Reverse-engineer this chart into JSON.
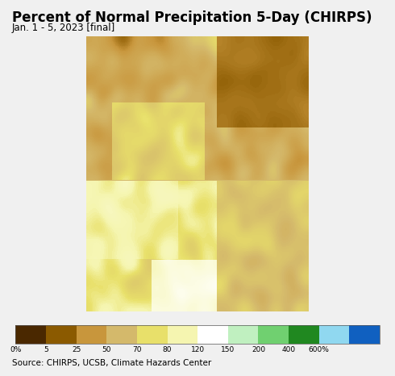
{
  "title": "Percent of Normal Precipitation 5-Day (CHIRPS)",
  "subtitle": "Jan. 1 - 5, 2023 [final]",
  "source_text": "Source: CHIRPS, UCSB, Climate Hazards Center",
  "colorbar_labels": [
    "0%",
    "5",
    "25",
    "50",
    "70",
    "80",
    "120",
    "150",
    "200",
    "400",
    "600%"
  ],
  "colorbar_values": [
    0,
    5,
    25,
    50,
    70,
    80,
    120,
    150,
    200,
    400,
    600
  ],
  "colorbar_colors": [
    "#4a2800",
    "#8b5a00",
    "#c8963c",
    "#d4b96b",
    "#e8e06a",
    "#f5f5b0",
    "#ffffff",
    "#c0f0c0",
    "#70d070",
    "#208820",
    "#90d8f0",
    "#1060c0"
  ],
  "ocean_color": "#aaddf0",
  "land_outside_color": "#e8e0e8",
  "fig_bg": "#f0f0f0",
  "map_bg": "#aaddf0",
  "title_fontsize": 12,
  "subtitle_fontsize": 8.5,
  "source_fontsize": 7.5,
  "map_extent": [
    124.0,
    132.5,
    33.0,
    43.5
  ]
}
